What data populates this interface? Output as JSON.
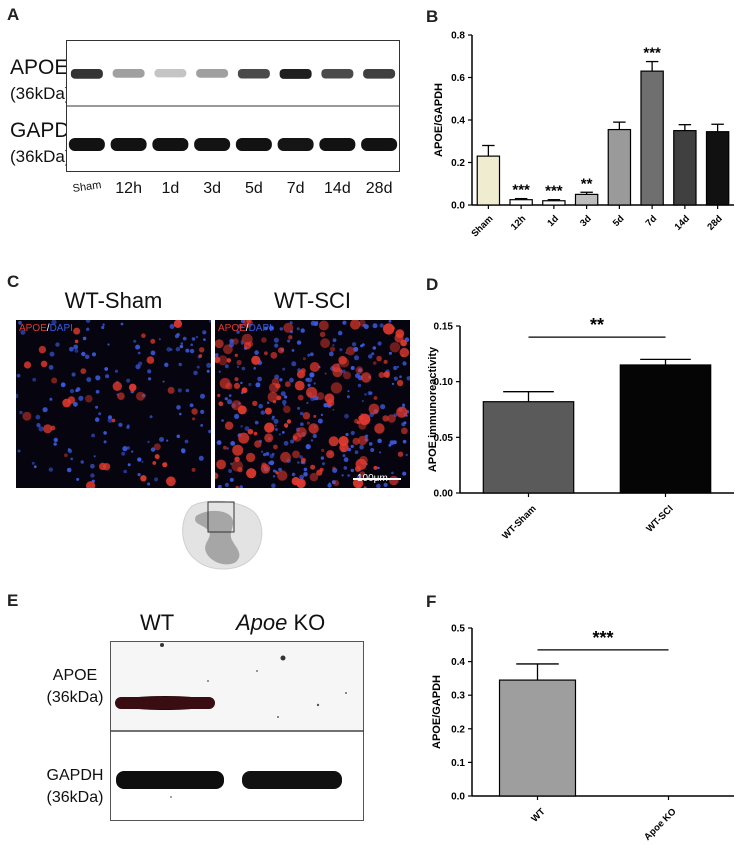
{
  "panels": {
    "A": {
      "letter": "A",
      "row1_label_main": "APOE",
      "row1_label_sub": "(36kDa)",
      "row2_label_main": "GAPDH",
      "row2_label_sub": "(36kDa)",
      "lanes": [
        "Sham",
        "12h",
        "1d",
        "3d",
        "5d",
        "7d",
        "14d",
        "28d"
      ],
      "apoe_intensity": [
        0.85,
        0.35,
        0.18,
        0.35,
        0.75,
        0.95,
        0.75,
        0.8
      ],
      "gapdh_intensity": [
        0.95,
        0.95,
        0.95,
        0.92,
        0.95,
        0.9,
        0.95,
        0.95
      ]
    },
    "C": {
      "letter": "C",
      "titles": [
        "WT-Sham",
        "WT-SCI"
      ],
      "stain_apoe": "APOE",
      "stain_sep": "/",
      "stain_dapi": "DAPI",
      "scale_bar": "100μm"
    },
    "E": {
      "letter": "E",
      "col_wt": "WT",
      "col_ko_italic": "Apoe",
      "col_ko_rest": " KO",
      "row1_label_main": "APOE",
      "row1_label_sub": "(36kDa)",
      "row2_label_main": "GAPDH",
      "row2_label_sub": "(36kDa)"
    }
  },
  "colors": {
    "red_stain": "#e23a2e",
    "blue_stain": "#3a5adf",
    "sham_bar": "#efeccf"
  },
  "chart_data": [
    {
      "panel": "B",
      "type": "bar",
      "letter": "B",
      "categories": [
        "Sham",
        "12h",
        "1d",
        "3d",
        "5d",
        "7d",
        "14d",
        "28d"
      ],
      "values": [
        0.23,
        0.025,
        0.02,
        0.05,
        0.355,
        0.63,
        0.35,
        0.345
      ],
      "errors": [
        0.05,
        0.005,
        0.005,
        0.01,
        0.035,
        0.045,
        0.028,
        0.035
      ],
      "significance": [
        "",
        "***",
        "***",
        "**",
        "",
        "***",
        "",
        ""
      ],
      "bar_colors": [
        "#efeccf",
        "#ffffff",
        "#ffffff",
        "#bdbdbd",
        "#9a9a9a",
        "#6f6f6f",
        "#404040",
        "#111111"
      ],
      "ylabel": "APOE/GAPDH",
      "ylim": [
        0,
        0.8
      ],
      "yticks": [
        "0.0",
        "0.2",
        "0.4",
        "0.6",
        "0.8"
      ]
    },
    {
      "panel": "D",
      "type": "bar",
      "letter": "D",
      "categories": [
        "WT-Sham",
        "WT-SCI"
      ],
      "values": [
        0.082,
        0.115
      ],
      "errors": [
        0.009,
        0.005
      ],
      "bar_colors": [
        "#5a5a5a",
        "#050505"
      ],
      "significance_label": "**",
      "ylabel": "APOE immunoreactivity",
      "ylim": [
        0,
        0.15
      ],
      "yticks": [
        "0.00",
        "0.05",
        "0.10",
        "0.15"
      ]
    },
    {
      "panel": "F",
      "type": "bar",
      "letter": "F",
      "categories": [
        "WT",
        "Apoe KO"
      ],
      "values": [
        0.345,
        0
      ],
      "errors": [
        0.048,
        0
      ],
      "bar_colors": [
        "#9e9e9e",
        "#9e9e9e"
      ],
      "significance_label": "***",
      "ylabel": "APOE/GAPDH",
      "ylim": [
        0,
        0.5
      ],
      "yticks": [
        "0.0",
        "0.1",
        "0.2",
        "0.3",
        "0.4",
        "0.5"
      ]
    }
  ]
}
